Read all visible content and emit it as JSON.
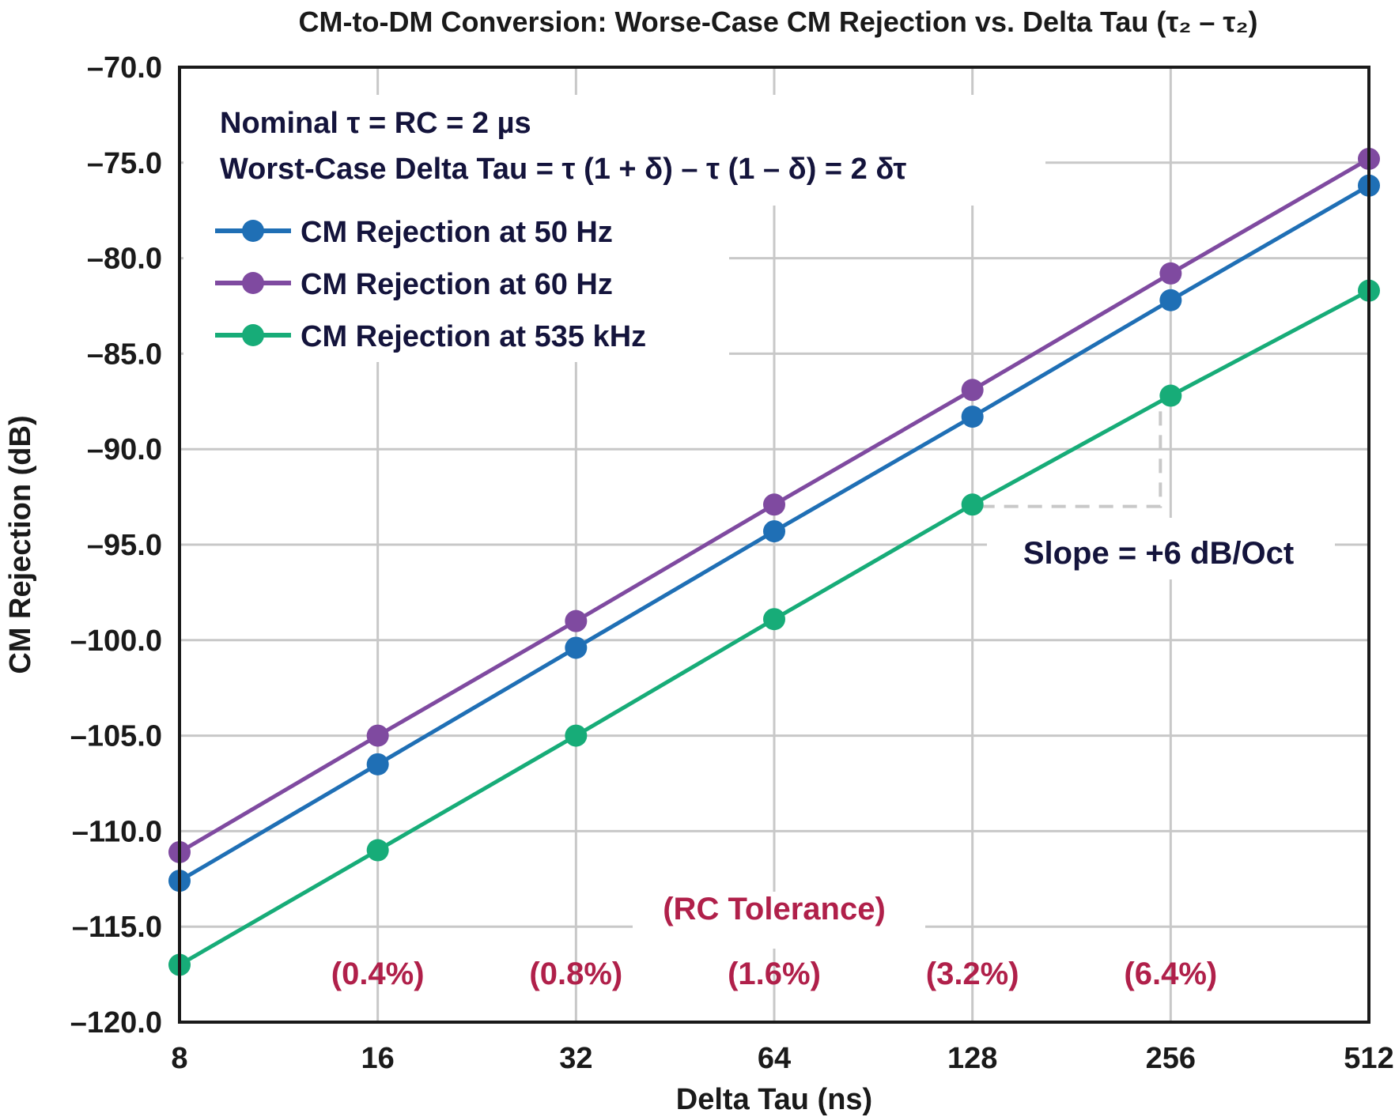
{
  "chart_data": {
    "type": "line",
    "title": "CM-to-DM Conversion: Worse-Case CM Rejection vs. Delta Tau (τ₂ – τ₂)",
    "xlabel": "Delta Tau (ns)",
    "ylabel": "CM Rejection (dB)",
    "x_scale": "log2",
    "x": [
      8,
      16,
      32,
      64,
      128,
      256,
      512
    ],
    "x_tick_labels": [
      "8",
      "16",
      "32",
      "64",
      "128",
      "256",
      "512"
    ],
    "y_tick_labels": [
      "–70.0",
      "–75.0",
      "–80.0",
      "–85.0",
      "–90.0",
      "–95.0",
      "–100.0",
      "–105.0",
      "–110.0",
      "–115.0",
      "–120.0"
    ],
    "ylim": [
      -120,
      -70
    ],
    "grid": true,
    "legend_position": "top-left",
    "series": [
      {
        "name": "CM Rejection at 50 Hz",
        "color": "#1f6fb5",
        "values": [
          -112.6,
          -106.5,
          -100.4,
          -94.3,
          -88.3,
          -82.2,
          -76.2
        ]
      },
      {
        "name": "CM Rejection at 60 Hz",
        "color": "#7f4aa0",
        "values": [
          -111.1,
          -105.0,
          -99.0,
          -92.9,
          -86.9,
          -80.8,
          -74.8
        ]
      },
      {
        "name": "CM Rejection at 535 kHz",
        "color": "#17ac78",
        "values": [
          -117.0,
          -111.0,
          -105.0,
          -98.9,
          -92.9,
          -87.2,
          -81.7
        ]
      }
    ],
    "annotations": {
      "line1": "Nominal τ = RC = 2 µs",
      "line2": "Worst-Case Delta Tau = τ (1 + δ) – τ (1 – δ) = 2 δτ",
      "tolerance_title": "(RC Tolerance)",
      "tolerances": [
        {
          "x": 16,
          "label": "(0.4%)"
        },
        {
          "x": 32,
          "label": "(0.8%)"
        },
        {
          "x": 64,
          "label": "(1.6%)"
        },
        {
          "x": 128,
          "label": "(3.2%)"
        },
        {
          "x": 256,
          "label": "(6.4%)"
        }
      ],
      "slope_label": "Slope = +6 dB/Oct",
      "slope_marker": {
        "x_from": 128,
        "x_to": 256,
        "y": -93.0
      }
    }
  }
}
